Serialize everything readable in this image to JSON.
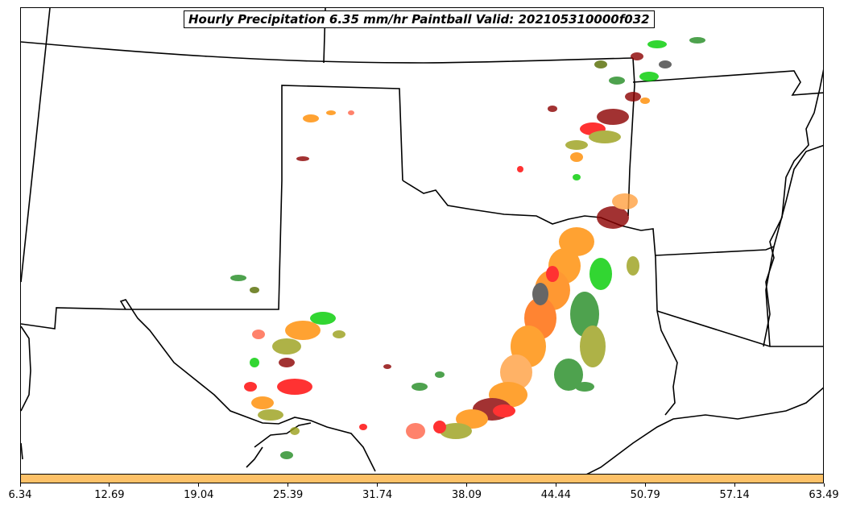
{
  "title": "Hourly Precipitation 6.35 mm/hr Paintball Valid: 202105310000f032",
  "colorbar": {
    "fill_color": "#fdc168",
    "ticks": [
      "6.34",
      "12.69",
      "19.04",
      "25.39",
      "31.74",
      "38.09",
      "44.44",
      "50.79",
      "57.14",
      "63.49"
    ]
  },
  "ensemble_colors": [
    "#ff0000",
    "#ff8c00",
    "#228b22",
    "#00cc00",
    "#8b0000",
    "#9aa01a",
    "#556b00",
    "#404040",
    "#ff6347",
    "#a0522d"
  ],
  "boundary_color": "#000000"
}
